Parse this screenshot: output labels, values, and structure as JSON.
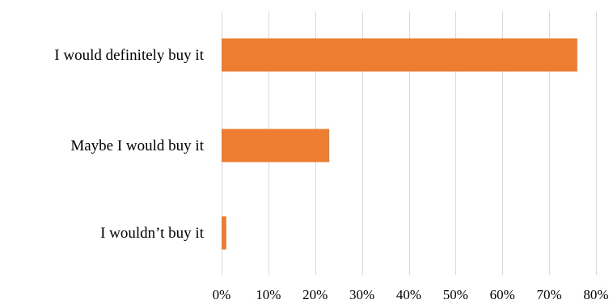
{
  "chart_data": {
    "type": "bar",
    "orientation": "horizontal",
    "categories": [
      "I would definitely buy it",
      "Maybe I would buy it",
      "I wouldn’t buy it"
    ],
    "values": [
      76,
      23,
      1
    ],
    "xlim": [
      0,
      80
    ],
    "xticks": [
      0,
      10,
      20,
      30,
      40,
      50,
      60,
      70,
      80
    ],
    "tick_labels": [
      "0%",
      "10%",
      "20%",
      "30%",
      "40%",
      "50%",
      "60%",
      "70%",
      "80%"
    ],
    "bar_color": "#ED7D31",
    "grid": true,
    "legend": "none"
  }
}
